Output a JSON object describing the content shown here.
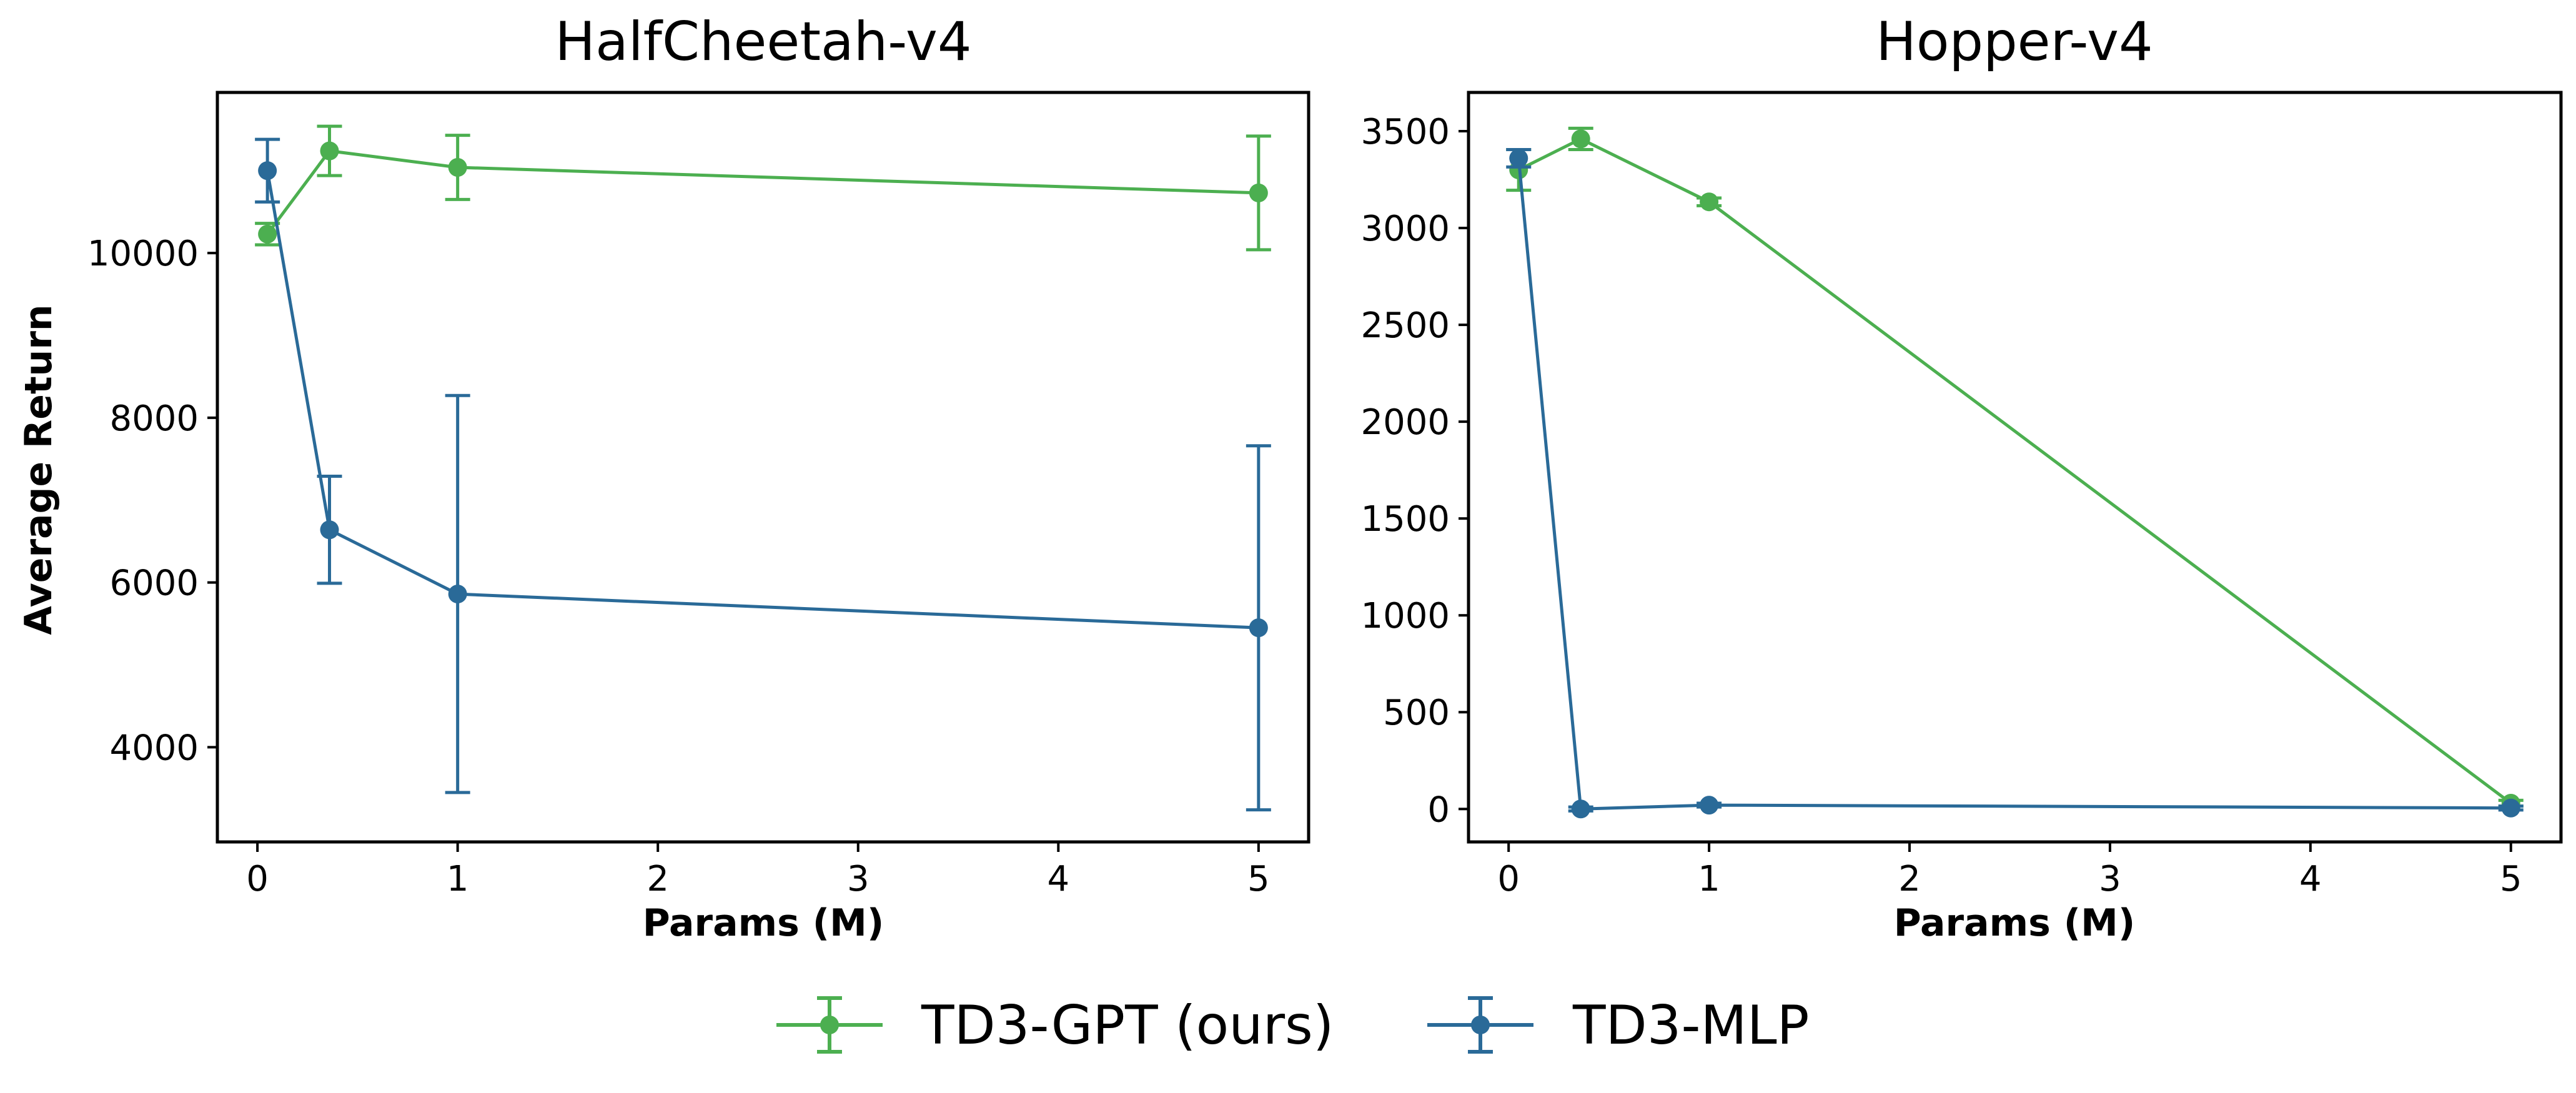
{
  "chart_data": [
    {
      "type": "line",
      "title": "HalfCheetah-v4",
      "xlabel": "Params (M)",
      "ylabel": "Average Return",
      "xlim": [
        -0.2,
        5.25
      ],
      "ylim": [
        2850,
        11950
      ],
      "xticks": [
        0,
        1,
        2,
        3,
        4,
        5
      ],
      "yticks": [
        4000,
        6000,
        8000,
        10000
      ],
      "grid": false,
      "series": [
        {
          "name": "TD3-GPT (ours)",
          "color": "#4caf50",
          "x": [
            0.05,
            0.36,
            1,
            5
          ],
          "y": [
            10230,
            11240,
            11040,
            10730
          ],
          "err": [
            130,
            300,
            390,
            690
          ]
        },
        {
          "name": "TD3-MLP",
          "color": "#2a6a98",
          "x": [
            0.05,
            0.36,
            1,
            5
          ],
          "y": [
            11000,
            6640,
            5860,
            5450
          ],
          "err": [
            380,
            650,
            2410,
            2210
          ]
        }
      ]
    },
    {
      "type": "line",
      "title": "Hopper-v4",
      "xlabel": "Params (M)",
      "ylabel": "",
      "xlim": [
        -0.2,
        5.25
      ],
      "ylim": [
        -170,
        3700
      ],
      "xticks": [
        0,
        1,
        2,
        3,
        4,
        5
      ],
      "yticks": [
        0,
        500,
        1000,
        1500,
        2000,
        2500,
        3000,
        3500
      ],
      "grid": false,
      "series": [
        {
          "name": "TD3-GPT (ours)",
          "color": "#4caf50",
          "x": [
            0.05,
            0.36,
            1,
            5
          ],
          "y": [
            3300,
            3460,
            3135,
            30
          ],
          "err": [
            105,
            55,
            20,
            15
          ]
        },
        {
          "name": "TD3-MLP",
          "color": "#2a6a98",
          "x": [
            0.05,
            0.36,
            1,
            5
          ],
          "y": [
            3360,
            0,
            20,
            5
          ],
          "err": [
            45,
            10,
            10,
            10
          ]
        }
      ]
    }
  ],
  "legend": {
    "position": "bottom-center",
    "items": [
      {
        "label": "TD3-GPT (ours)",
        "color": "#4caf50"
      },
      {
        "label": "TD3-MLP",
        "color": "#2a6a98"
      }
    ]
  }
}
